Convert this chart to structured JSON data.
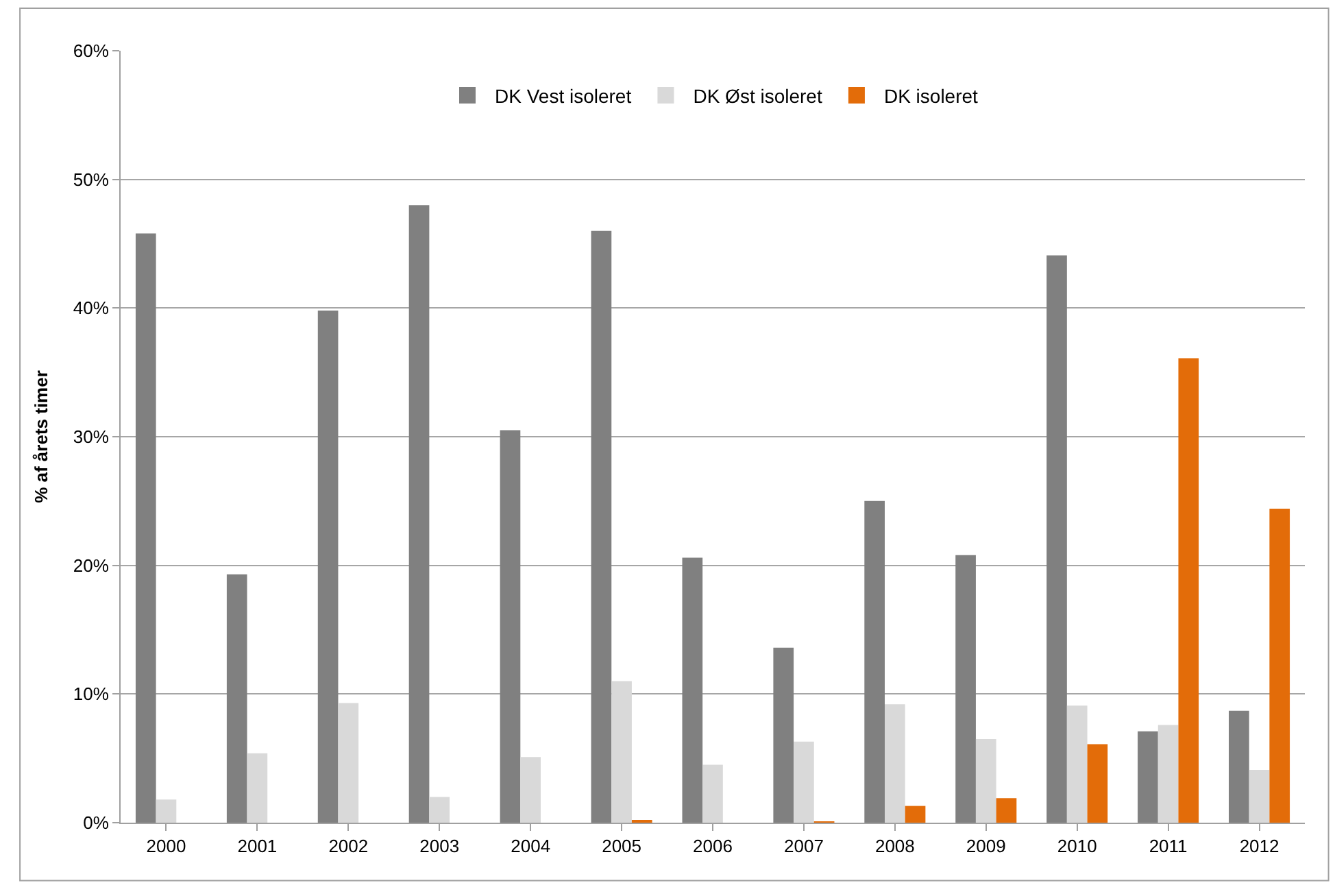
{
  "chart_data": {
    "type": "bar",
    "ylabel": "% af årets timer",
    "categories": [
      "2000",
      "2001",
      "2002",
      "2003",
      "2004",
      "2005",
      "2006",
      "2007",
      "2008",
      "2009",
      "2010",
      "2011",
      "2012"
    ],
    "series": [
      {
        "name": "DK Vest isoleret",
        "color": "#808080",
        "values": [
          45.8,
          19.3,
          39.8,
          48.0,
          30.5,
          46.0,
          20.6,
          13.6,
          25.0,
          20.8,
          44.1,
          7.1,
          8.7
        ]
      },
      {
        "name": "DK Øst isoleret",
        "color": "#d9d9d9",
        "values": [
          1.8,
          5.4,
          9.3,
          2.0,
          5.1,
          11.0,
          4.5,
          6.3,
          9.2,
          6.5,
          9.1,
          7.6,
          4.1
        ]
      },
      {
        "name": "DK isoleret",
        "color": "#e36c09",
        "values": [
          0,
          0,
          0,
          0,
          0,
          0.2,
          0,
          0.1,
          1.3,
          1.9,
          6.1,
          36.1,
          24.4
        ]
      }
    ],
    "ylim": [
      0,
      60
    ],
    "yticks": [
      {
        "value": 0,
        "label": "0%"
      },
      {
        "value": 10,
        "label": "10%"
      },
      {
        "value": 20,
        "label": "20%"
      },
      {
        "value": 30,
        "label": "30%"
      },
      {
        "value": 40,
        "label": "40%"
      },
      {
        "value": 50,
        "label": "50%"
      },
      {
        "value": 60,
        "label": "60%"
      }
    ],
    "grid": "y",
    "legend": "top"
  }
}
